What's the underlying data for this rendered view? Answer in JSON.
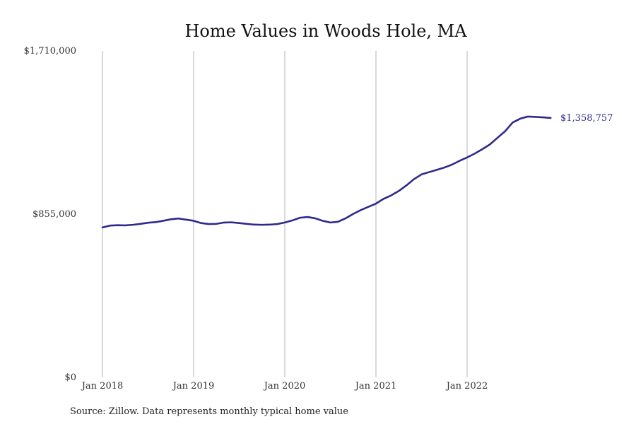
{
  "chart_data": {
    "type": "line",
    "title": "Home Values in Woods Hole, MA",
    "source": "Source: Zillow. Data represents monthly typical home value",
    "xlabel": "",
    "ylabel": "",
    "ylim": [
      0,
      1710000
    ],
    "y_ticks": [
      {
        "value": 0,
        "label": "$0"
      },
      {
        "value": 855000,
        "label": "$855,000"
      },
      {
        "value": 1710000,
        "label": "$1,710,000"
      }
    ],
    "x_ticks": [
      {
        "index": 0,
        "label": "Jan 2018"
      },
      {
        "index": 12,
        "label": "Jan 2019"
      },
      {
        "index": 24,
        "label": "Jan 2020"
      },
      {
        "index": 36,
        "label": "Jan 2021"
      },
      {
        "index": 48,
        "label": "Jan 2022"
      }
    ],
    "vertical_grid": true,
    "series_color": "#2e2a8c",
    "x": [
      "2018-01",
      "2018-02",
      "2018-03",
      "2018-04",
      "2018-05",
      "2018-06",
      "2018-07",
      "2018-08",
      "2018-09",
      "2018-10",
      "2018-11",
      "2018-12",
      "2019-01",
      "2019-02",
      "2019-03",
      "2019-04",
      "2019-05",
      "2019-06",
      "2019-07",
      "2019-08",
      "2019-09",
      "2019-10",
      "2019-11",
      "2019-12",
      "2020-01",
      "2020-02",
      "2020-03",
      "2020-04",
      "2020-05",
      "2020-06",
      "2020-07",
      "2020-08",
      "2020-09",
      "2020-10",
      "2020-11",
      "2020-12",
      "2021-01",
      "2021-02",
      "2021-03",
      "2021-04",
      "2021-05",
      "2021-06",
      "2021-07",
      "2021-08",
      "2021-09",
      "2021-10",
      "2021-11",
      "2021-12",
      "2022-01",
      "2022-02",
      "2022-03",
      "2022-04",
      "2022-05",
      "2022-06",
      "2022-07",
      "2022-08",
      "2022-09",
      "2022-10",
      "2022-11",
      "2022-12"
    ],
    "series": [
      {
        "values": [
          785000,
          795000,
          797000,
          796000,
          799000,
          804000,
          810000,
          813000,
          820000,
          828000,
          832000,
          826000,
          820000,
          808000,
          803000,
          804000,
          811000,
          812000,
          808000,
          804000,
          800000,
          799000,
          800000,
          803000,
          811000,
          822000,
          836000,
          840000,
          833000,
          820000,
          811000,
          815000,
          833000,
          856000,
          876000,
          893000,
          910000,
          935000,
          953000,
          976000,
          1005000,
          1038000,
          1063000,
          1075000,
          1087000,
          1099000,
          1114000,
          1134000,
          1152000,
          1172000,
          1195000,
          1220000,
          1255000,
          1289000,
          1335000,
          1355000,
          1366000,
          1364000,
          1362000,
          1358757
        ]
      }
    ],
    "end_label": "$1,358,757"
  }
}
